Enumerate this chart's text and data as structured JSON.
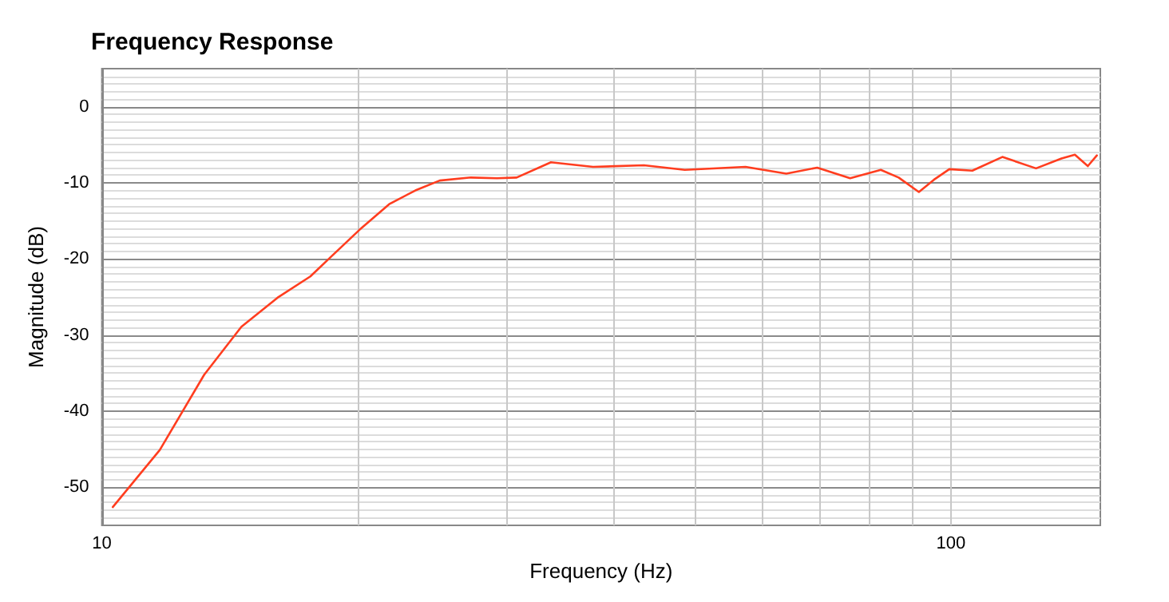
{
  "chart_data": {
    "type": "line",
    "title": "Frequency Response",
    "xlabel": "Frequency (Hz)",
    "ylabel": "Magnitude (dB)",
    "log": "x",
    "grid": true,
    "marker": "none",
    "line_style": "solid",
    "xlim": [
      10,
      150
    ],
    "ylim": [
      -55,
      5
    ],
    "xticks": [
      10,
      {
        "value": 20,
        "label": null
      },
      {
        "value": 30,
        "label": null
      },
      {
        "value": 40,
        "label": null
      },
      {
        "value": 50,
        "label": null
      },
      {
        "value": 60,
        "label": null
      },
      {
        "value": 70,
        "label": null
      },
      {
        "value": 80,
        "label": null
      },
      {
        "value": 90,
        "label": null
      },
      100
    ],
    "yticks": [
      -50,
      -40,
      -30,
      -20,
      -10,
      0
    ],
    "series": [
      {
        "color": "#ff3d1f",
        "x": [
          10.3,
          11.7,
          13.2,
          14.6,
          16.1,
          17.6,
          18.7,
          20.1,
          21.8,
          23.4,
          25.0,
          27.2,
          29.2,
          30.8,
          33.8,
          37.9,
          43.5,
          48.6,
          57.3,
          64.0,
          69.6,
          76.1,
          82.7,
          86.8,
          91.7,
          95.5,
          99.6,
          106,
          115,
          126,
          135,
          140,
          145,
          148.6
        ],
        "values": [
          -52.6,
          -45.1,
          -35.2,
          -28.9,
          -25.1,
          -22.3,
          -19.5,
          -16.2,
          -12.8,
          -11.0,
          -9.7,
          -9.3,
          -9.4,
          -9.3,
          -7.3,
          -7.9,
          -7.7,
          -8.3,
          -7.9,
          -8.8,
          -8.0,
          -9.4,
          -8.3,
          -9.3,
          -11.2,
          -9.6,
          -8.2,
          -8.4,
          -6.6,
          -8.1,
          -6.8,
          -6.3,
          -7.8,
          -6.4
        ]
      }
    ]
  }
}
